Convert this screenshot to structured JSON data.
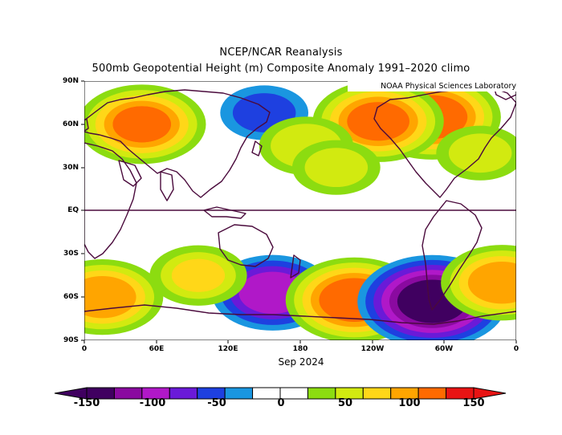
{
  "title_line1": "NCEP/NCAR Reanalysis",
  "title_line2": "500mb Geopotential Height (m) Composite Anomaly 1991–2020 climo",
  "credit": "NOAA Physical Sciences Laboratory",
  "period_label": "Sep 2024",
  "lat_labels": [
    "90N",
    "60N",
    "30N",
    "EQ",
    "30S",
    "60S",
    "90S"
  ],
  "lon_labels": [
    "0",
    "60E",
    "120E",
    "180",
    "120W",
    "60W",
    "0"
  ],
  "colorbar": {
    "labels": [
      "-150",
      "-100",
      "-50",
      "0",
      "50",
      "100",
      "150"
    ],
    "colors": [
      "#400060",
      "#8a0aa0",
      "#b018c8",
      "#6a1ad8",
      "#1e40e0",
      "#1a96e0",
      "#ffffff",
      "#ffffff",
      "#8cdc10",
      "#d2ea10",
      "#ffd718",
      "#ffa500",
      "#ff6a00",
      "#e81414"
    ]
  },
  "chart_data": {
    "type": "map",
    "variable": "500mb Geopotential Height (m) Composite Anomaly",
    "climatology": "1991–2020",
    "period": "Sep 2024",
    "xlim": [
      0,
      360
    ],
    "ylim": [
      -90,
      90
    ],
    "levels": [
      -150,
      -125,
      -100,
      -75,
      -50,
      -25,
      0,
      25,
      50,
      75,
      100,
      125,
      150
    ],
    "anomaly_centers": [
      {
        "lon": 48,
        "lat": 60,
        "value": 125
      },
      {
        "lon": 290,
        "lat": 65,
        "value": 140
      },
      {
        "lon": 150,
        "lat": 68,
        "value": -60
      },
      {
        "lon": 245,
        "lat": 62,
        "value": 130
      },
      {
        "lon": 157,
        "lat": -57,
        "value": -115
      },
      {
        "lon": 225,
        "lat": -62,
        "value": 140
      },
      {
        "lon": 290,
        "lat": -63,
        "value": -160
      },
      {
        "lon": 348,
        "lat": -50,
        "value": 115
      },
      {
        "lon": 15,
        "lat": -60,
        "value": 115
      },
      {
        "lon": 95,
        "lat": -45,
        "value": 75
      },
      {
        "lon": 185,
        "lat": 45,
        "value": 70
      },
      {
        "lon": 210,
        "lat": 30,
        "value": 60
      },
      {
        "lon": 330,
        "lat": 40,
        "value": 60
      }
    ]
  }
}
